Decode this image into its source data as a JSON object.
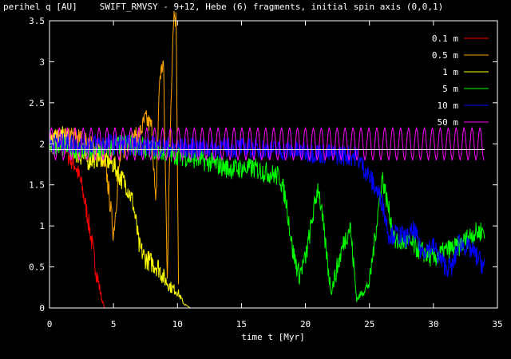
{
  "chart_data": {
    "type": "line",
    "title": "SWIFT_RMVSY - 9+12, Hebe (6) fragments, initial spin axis (0,0,1)",
    "xlabel": "time t [Myr]",
    "ylabel": "perihel q [AU]",
    "xlim": [
      0,
      35
    ],
    "ylim": [
      0,
      3.5
    ],
    "xticks": [
      "0",
      "5",
      "10",
      "15",
      "20",
      "25",
      "30",
      "35"
    ],
    "yticks": [
      "0",
      "0.5",
      "1",
      "1.5",
      "2",
      "2.5",
      "3",
      "3.5"
    ],
    "grid": false,
    "legend_position": "top-right",
    "reference_line": {
      "y": 1.93,
      "color": "#ffffff"
    },
    "series": [
      {
        "name": "0.1 m",
        "color": "#ff0000",
        "x": [
          0,
          0.5,
          1,
          1.5,
          2,
          2.5,
          3,
          3.3,
          3.6,
          3.9,
          4.1,
          4.3,
          8.5
        ],
        "y": [
          2.0,
          2.1,
          2.05,
          1.85,
          1.75,
          1.5,
          1.1,
          0.8,
          0.5,
          0.25,
          0.1,
          0.0,
          0.0
        ]
      },
      {
        "name": "0.5 m",
        "color": "#ffa500",
        "x": [
          0,
          2,
          3,
          4,
          4.5,
          5,
          5.5,
          6,
          7,
          7.5,
          8,
          8.3,
          8.6,
          8.9,
          9.2,
          9.5,
          9.7,
          9.9,
          10.1
        ],
        "y": [
          2.0,
          2.1,
          2.0,
          1.9,
          1.6,
          0.9,
          1.8,
          2.0,
          2.1,
          2.3,
          2.2,
          1.2,
          2.8,
          3.0,
          0.4,
          2.6,
          3.6,
          3.5,
          0.0
        ]
      },
      {
        "name": "1 m",
        "color": "#ffff00",
        "x": [
          0,
          1,
          2,
          3,
          4,
          5,
          5.5,
          6,
          6.5,
          6.8,
          7,
          7.5,
          8,
          8.5,
          9,
          9.5,
          10,
          10.5,
          11,
          34
        ],
        "y": [
          2.0,
          2.1,
          1.9,
          1.8,
          1.85,
          1.75,
          1.6,
          1.5,
          1.3,
          1.0,
          0.75,
          0.6,
          0.55,
          0.5,
          0.35,
          0.25,
          0.2,
          0.05,
          0.0,
          0.0
        ]
      },
      {
        "name": "5 m",
        "color": "#00ff00",
        "x": [
          0,
          3,
          6,
          9,
          12,
          14,
          16,
          18,
          18.5,
          19,
          19.5,
          20,
          21,
          22,
          23,
          23.5,
          24,
          25,
          26,
          27,
          28,
          29,
          30,
          31,
          32,
          33,
          34
        ],
        "y": [
          2.0,
          1.9,
          2.0,
          1.9,
          1.8,
          1.7,
          1.7,
          1.6,
          1.3,
          0.7,
          0.4,
          0.6,
          1.5,
          0.2,
          0.8,
          1.0,
          0.1,
          0.3,
          1.6,
          0.8,
          0.8,
          0.7,
          0.6,
          0.7,
          0.75,
          0.9,
          0.95
        ]
      },
      {
        "name": "10 m",
        "color": "#0000ff",
        "x": [
          0,
          5,
          10,
          15,
          20,
          24,
          25,
          26,
          26.5,
          27,
          28,
          28.5,
          29,
          30,
          30.5,
          31,
          31.5,
          32,
          33,
          34
        ],
        "y": [
          2.0,
          2.0,
          1.95,
          1.95,
          1.9,
          1.85,
          1.6,
          1.3,
          0.9,
          0.9,
          0.85,
          0.95,
          0.7,
          0.75,
          0.6,
          0.5,
          0.5,
          0.8,
          0.7,
          0.5
        ]
      },
      {
        "name": "50 m",
        "color": "#ff00ff",
        "x": [
          0,
          34
        ],
        "y": [
          2.0,
          2.0
        ],
        "oscillation": {
          "amplitude": 0.2,
          "period_myr": 0.62
        }
      }
    ]
  }
}
